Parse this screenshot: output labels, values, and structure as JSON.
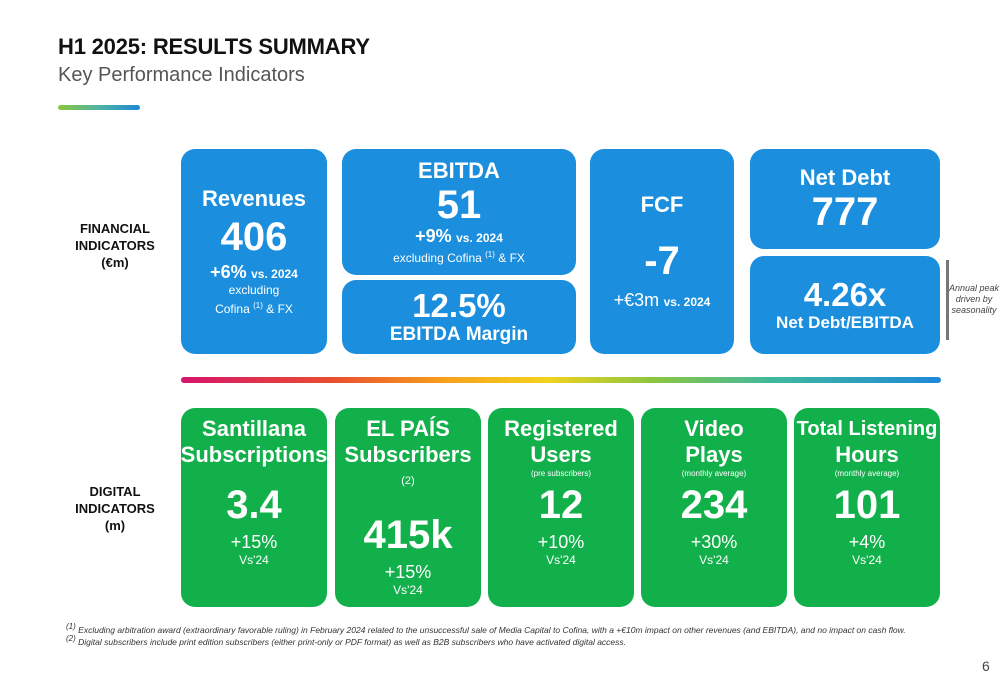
{
  "header": {
    "title": "H1 2025: RESULTS SUMMARY",
    "subtitle": "Key Performance Indicators"
  },
  "financial": {
    "row_label": [
      "FINANCIAL",
      "INDICATORS",
      "(€m)"
    ],
    "revenues": {
      "name": "Revenues",
      "value": "406",
      "change": "+6%",
      "vs": "vs. 2024",
      "note_1": "excluding",
      "note_2": "Cofina",
      "note_sup": "(1)",
      "note_3": "& FX"
    },
    "ebitda": {
      "name": "EBITDA",
      "value": "51",
      "change": "+9%",
      "vs": "vs. 2024",
      "note_1": "excluding Cofina",
      "note_sup": "(1)",
      "note_2": "& FX"
    },
    "ebitda_margin": {
      "value": "12.5%",
      "label_bold": "EBITDA",
      "label_rest": "Margin"
    },
    "fcf": {
      "name": "FCF",
      "value": "-7",
      "change": "+€3m",
      "vs": "vs. 2024"
    },
    "net_debt": {
      "name": "Net Debt",
      "value": "777"
    },
    "leverage": {
      "value": "4.26x",
      "label": "Net Debt/EBITDA"
    },
    "annotation": [
      "Annual peak",
      "driven by",
      "seasonality"
    ]
  },
  "digital": {
    "row_label": [
      "DIGITAL",
      "INDICATORS",
      "(m)"
    ],
    "cards": [
      {
        "name_1": "Santillana",
        "name_2": "Subscriptions",
        "sub": "",
        "value": "3.4",
        "change": "+15%",
        "vs": "Vs'24"
      },
      {
        "name_1": "EL PAÍS",
        "name_2": "Subscribers",
        "sup": "(2)",
        "sub": "",
        "value": "415k",
        "change": "+15%",
        "vs": "Vs'24"
      },
      {
        "name_1": "Registered",
        "name_2": "Users",
        "sub": "(pre subscribers)",
        "value": "12",
        "change": "+10%",
        "vs": "Vs'24"
      },
      {
        "name_1": "Video",
        "name_2": "Plays",
        "sub": "(monthly average)",
        "value": "234",
        "change": "+30%",
        "vs": "Vs'24"
      },
      {
        "name_1": "Total Listening",
        "name_2": "Hours",
        "sub": "(monthly average)",
        "value": "101",
        "change": "+4%",
        "vs": "Vs'24"
      }
    ]
  },
  "footnotes": {
    "f1_sup": "(1)",
    "f1": "Excluding arbitration award (extraordinary favorable ruling) in February 2024 related to the unsuccessful sale of Media Capital to Cofina, with a +€10m impact on other revenues (and EBITDA), and no impact on cash flow.",
    "f2_sup": "(2)",
    "f2": "Digital subscribers include print edition subscribers (either print-only or PDF format) as well as B2B subscribers who have activated digital access."
  },
  "page_number": "6",
  "colors": {
    "blue": "#1b8fde",
    "green": "#12b04a"
  }
}
